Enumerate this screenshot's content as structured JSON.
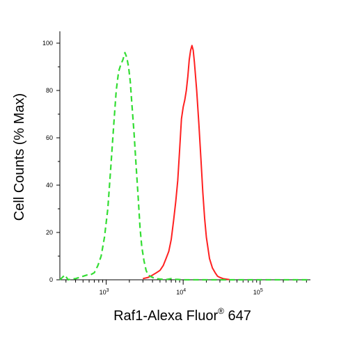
{
  "chart_data": {
    "type": "line",
    "title": "",
    "xlabel": {
      "main": "Raf1-Alexa Fluor",
      "superscript": "®",
      "suffix": " 647"
    },
    "ylabel": "Cell Counts (% Max)",
    "x_scale": "log",
    "xlim": [
      250,
      450000
    ],
    "ylim": [
      0,
      105
    ],
    "yticks": [
      "0",
      "20",
      "40",
      "60",
      "80",
      "100"
    ],
    "ytick_values": [
      0,
      20,
      40,
      60,
      80,
      100
    ],
    "xticks": [
      {
        "base": "10",
        "exp": "3",
        "value": 1000
      },
      {
        "base": "10",
        "exp": "4",
        "value": 10000
      },
      {
        "base": "10",
        "exp": "5",
        "value": 100000
      }
    ],
    "grid": false,
    "legend": "none",
    "series": [
      {
        "color": "#ff2020",
        "style": "solid",
        "x": [
          3000,
          3500,
          4000,
          4500,
          5000,
          5500,
          6000,
          6500,
          7000,
          7500,
          8000,
          8500,
          9000,
          9500,
          10000,
          10500,
          11000,
          11500,
          12000,
          12500,
          13000,
          13500,
          14000,
          15000,
          16000,
          17000,
          18000,
          19000,
          20000,
          22000,
          24000,
          26000,
          28000,
          30000,
          33000,
          36000,
          40000
        ],
        "y": [
          0.5,
          1,
          2,
          3,
          4,
          6,
          9,
          12,
          17,
          25,
          33,
          42,
          55,
          68,
          73,
          76,
          80,
          86,
          93,
          97,
          99,
          97,
          92,
          80,
          66,
          51,
          37,
          26,
          18,
          9,
          5,
          3,
          1.5,
          1,
          0.5,
          0.3,
          0.1
        ]
      },
      {
        "color": "#33dd33",
        "style": "dashed",
        "x": [
          250,
          290,
          320,
          350,
          400,
          450,
          500,
          560,
          620,
          700,
          780,
          860,
          950,
          1050,
          1150,
          1250,
          1350,
          1450,
          1550,
          1650,
          1750,
          1850,
          1950,
          2050,
          2150,
          2300,
          2450,
          2600,
          2750,
          2900,
          3100,
          3300,
          3500,
          4000,
          4500,
          5000,
          6000,
          7000,
          8000,
          10000,
          20000,
          50000,
          100000,
          200000,
          450000
        ],
        "y": [
          0,
          2,
          0,
          0.3,
          0.5,
          1,
          1.5,
          2,
          2,
          3,
          6,
          10,
          18,
          30,
          48,
          65,
          80,
          88,
          91,
          93,
          96,
          94,
          90,
          84,
          75,
          62,
          48,
          35,
          22,
          14,
          8,
          4,
          2,
          1,
          0.5,
          0.3,
          0.1,
          0.5,
          0.2,
          0,
          0,
          0,
          0,
          0,
          0
        ]
      }
    ]
  }
}
